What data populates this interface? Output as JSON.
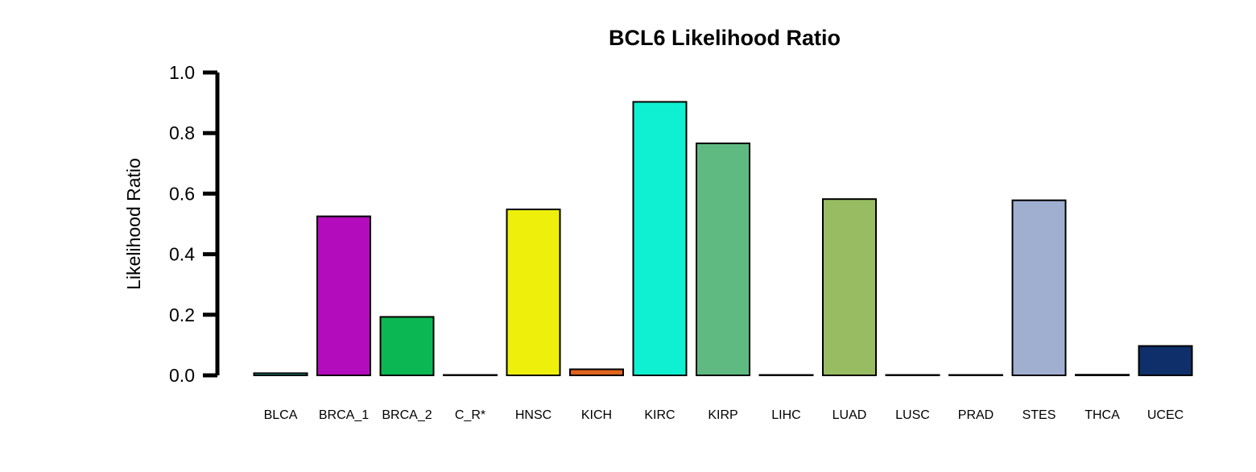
{
  "chart_data": {
    "type": "bar",
    "title": "BCL6 Likelihood Ratio",
    "xlabel": "",
    "ylabel": "Likelihood Ratio",
    "ylim": [
      0,
      1.0
    ],
    "yticks": [
      "0.0",
      "0.2",
      "0.4",
      "0.6",
      "0.8",
      "1.0"
    ],
    "grid": false,
    "categories": [
      "BLCA",
      "BRCA_1",
      "BRCA_2",
      "C_R*",
      "HNSC",
      "KICH",
      "KIRC",
      "KIRP",
      "LIHC",
      "LUAD",
      "LUSC",
      "PRAD",
      "STES",
      "THCA",
      "UCEC"
    ],
    "values": [
      0.007,
      0.525,
      0.193,
      0.0,
      0.548,
      0.02,
      0.903,
      0.766,
      0.0,
      0.582,
      0.0,
      0.0,
      0.578,
      0.002,
      0.097
    ],
    "colors": [
      "#1bc6b4",
      "#b30cbc",
      "#0bb752",
      "#2e2e2e",
      "#eef00c",
      "#e0641c",
      "#0ff0d2",
      "#5fba82",
      "#2e2e2e",
      "#98bc62",
      "#2e2e2e",
      "#2e2e2e",
      "#a0aed0",
      "#2e2e2e",
      "#0f2f6a"
    ]
  }
}
